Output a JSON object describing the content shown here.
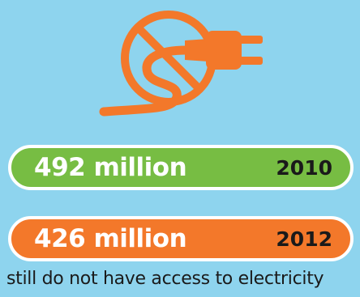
{
  "icon": {
    "name": "no-plug-icon",
    "ring_color": "#f3782a",
    "plug_color": "#f3782a",
    "background_color": "#8ed4ee"
  },
  "stats": [
    {
      "amount": "492 million",
      "year": "2010",
      "color": "#77bd43"
    },
    {
      "amount": "426 million",
      "year": "2012",
      "color": "#f3782a"
    }
  ],
  "caption": "still do not have access to electricity"
}
